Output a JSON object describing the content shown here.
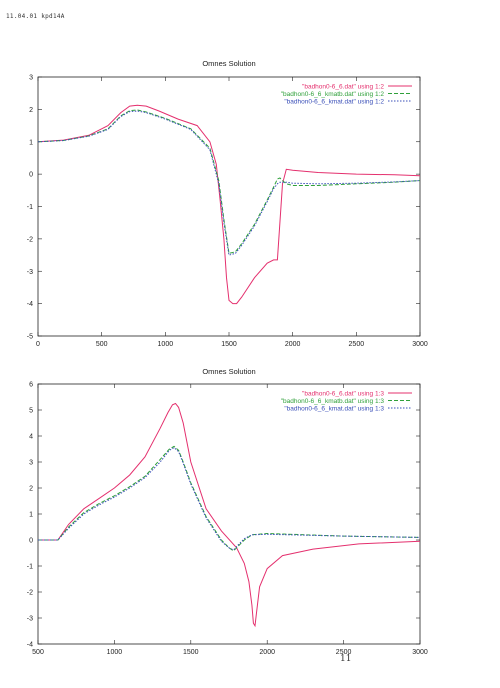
{
  "page": {
    "header_text": "11.04.01 kpd14A",
    "page_mark": "11"
  },
  "chart_data": [
    {
      "type": "line",
      "title": "Omnes Solution",
      "xlabel": "",
      "ylabel": "",
      "xlim": [
        0,
        3000
      ],
      "ylim": [
        -5,
        3
      ],
      "xticks": [
        0,
        500,
        1000,
        1500,
        2000,
        2500,
        3000
      ],
      "yticks": [
        -5,
        -4,
        -3,
        -2,
        -1,
        0,
        1,
        2,
        3
      ],
      "grid": false,
      "legend_position": "top-right",
      "series": [
        {
          "name": "\"badhon0-6_6.dat\" using 1:2",
          "color": "#e4306e",
          "style": "solid",
          "x": [
            0,
            200,
            400,
            550,
            650,
            720,
            780,
            850,
            950,
            1100,
            1250,
            1350,
            1400,
            1430,
            1460,
            1480,
            1500,
            1530,
            1560,
            1600,
            1700,
            1800,
            1850,
            1880,
            1900,
            1920,
            1950,
            2000,
            2200,
            2500,
            2800,
            3000
          ],
          "y": [
            1.0,
            1.05,
            1.2,
            1.5,
            1.9,
            2.1,
            2.13,
            2.1,
            1.95,
            1.7,
            1.5,
            1.0,
            0.3,
            -0.8,
            -2.0,
            -3.2,
            -3.9,
            -4.0,
            -4.0,
            -3.8,
            -3.2,
            -2.75,
            -2.65,
            -2.65,
            -1.5,
            -0.3,
            0.15,
            0.12,
            0.05,
            0.0,
            -0.02,
            -0.05
          ]
        },
        {
          "name": "\"badhon0-6_6_kmatb.dat\" using 1:2",
          "color": "#2fa03a",
          "style": "dashed",
          "x": [
            0,
            200,
            400,
            550,
            650,
            720,
            780,
            850,
            1000,
            1200,
            1350,
            1420,
            1460,
            1500,
            1550,
            1600,
            1700,
            1800,
            1850,
            1880,
            1900,
            1920,
            1950,
            2000,
            2200,
            2500,
            2800,
            3000
          ],
          "y": [
            1.0,
            1.04,
            1.18,
            1.4,
            1.8,
            1.96,
            1.98,
            1.92,
            1.72,
            1.4,
            0.8,
            -0.2,
            -1.4,
            -2.45,
            -2.4,
            -2.15,
            -1.55,
            -0.8,
            -0.4,
            -0.15,
            -0.12,
            -0.2,
            -0.3,
            -0.35,
            -0.35,
            -0.3,
            -0.25,
            -0.2
          ]
        },
        {
          "name": "\"badhon0-6_6_kmat.dat\" using 1:2",
          "color": "#3a4fb8",
          "style": "dotted",
          "x": [
            0,
            200,
            400,
            550,
            650,
            720,
            780,
            850,
            1000,
            1200,
            1350,
            1420,
            1460,
            1500,
            1550,
            1600,
            1700,
            1800,
            1850,
            1880,
            1900,
            1920,
            1950,
            2000,
            2200,
            2500,
            2800,
            3000
          ],
          "y": [
            1.0,
            1.04,
            1.17,
            1.38,
            1.78,
            1.93,
            1.95,
            1.9,
            1.7,
            1.38,
            0.75,
            -0.3,
            -1.5,
            -2.5,
            -2.45,
            -2.2,
            -1.6,
            -0.85,
            -0.45,
            -0.3,
            -0.25,
            -0.25,
            -0.25,
            -0.28,
            -0.3,
            -0.28,
            -0.24,
            -0.2
          ]
        }
      ]
    },
    {
      "type": "line",
      "title": "Omnes Solution",
      "xlabel": "",
      "ylabel": "",
      "xlim": [
        500,
        3000
      ],
      "ylim": [
        -4,
        6
      ],
      "xticks": [
        500,
        1000,
        1500,
        2000,
        2500,
        3000
      ],
      "yticks": [
        -4,
        -3,
        -2,
        -1,
        0,
        1,
        2,
        3,
        4,
        5,
        6
      ],
      "grid": false,
      "legend_position": "top-right",
      "series": [
        {
          "name": "\"badhon0-6_6.dat\" using 1:3",
          "color": "#e4306e",
          "style": "solid",
          "x": [
            500,
            630,
            700,
            800,
            900,
            1000,
            1100,
            1200,
            1300,
            1350,
            1380,
            1400,
            1420,
            1450,
            1500,
            1600,
            1700,
            1800,
            1850,
            1880,
            1900,
            1910,
            1920,
            1930,
            1950,
            2000,
            2100,
            2300,
            2600,
            3000
          ],
          "y": [
            0.0,
            0.0,
            0.6,
            1.2,
            1.6,
            2.0,
            2.5,
            3.2,
            4.3,
            4.9,
            5.2,
            5.25,
            5.1,
            4.5,
            3.0,
            1.2,
            0.35,
            -0.3,
            -0.9,
            -1.6,
            -2.5,
            -3.2,
            -3.3,
            -2.8,
            -1.8,
            -1.1,
            -0.6,
            -0.35,
            -0.15,
            -0.05
          ]
        },
        {
          "name": "\"badhon0-6_6_kmatb.dat\" using 1:3",
          "color": "#2fa03a",
          "style": "dashed",
          "x": [
            500,
            630,
            700,
            800,
            900,
            1000,
            1100,
            1200,
            1300,
            1360,
            1390,
            1420,
            1450,
            1500,
            1600,
            1700,
            1750,
            1780,
            1800,
            1850,
            1900,
            2000,
            2500,
            3000
          ],
          "y": [
            0.0,
            0.0,
            0.5,
            1.05,
            1.4,
            1.7,
            2.05,
            2.45,
            3.1,
            3.5,
            3.6,
            3.45,
            3.0,
            2.2,
            0.9,
            0.0,
            -0.3,
            -0.42,
            -0.3,
            0.0,
            0.2,
            0.25,
            0.15,
            0.1
          ]
        },
        {
          "name": "\"badhon0-6_6_kmat.dat\" using 1:3",
          "color": "#3a4fb8",
          "style": "dotted",
          "x": [
            500,
            630,
            700,
            800,
            900,
            1000,
            1100,
            1200,
            1300,
            1360,
            1390,
            1420,
            1450,
            1500,
            1600,
            1700,
            1750,
            1780,
            1800,
            1850,
            1900,
            2000,
            2500,
            3000
          ],
          "y": [
            0.0,
            0.0,
            0.45,
            1.0,
            1.35,
            1.65,
            2.0,
            2.4,
            3.0,
            3.45,
            3.55,
            3.4,
            2.95,
            2.15,
            0.85,
            -0.05,
            -0.3,
            -0.38,
            -0.25,
            0.05,
            0.2,
            0.22,
            0.15,
            0.1
          ]
        }
      ]
    }
  ]
}
